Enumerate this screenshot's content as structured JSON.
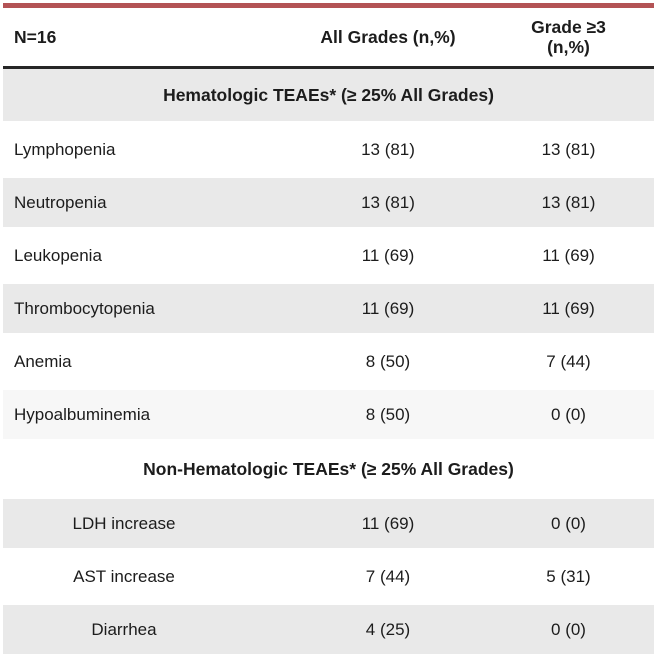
{
  "accent": {
    "top_bar_color": "#b35355",
    "header_rule_color": "#262626",
    "band_color": "#e9e9e9",
    "faint_band_color": "#f7f7f7"
  },
  "header": {
    "col1": "N=16",
    "col2": "All Grades (n,%)",
    "col3_line1": "Grade ≥3",
    "col3_line2": "(n,%)"
  },
  "sections": [
    {
      "title": "Hematologic TEAEs* (≥ 25% All Grades)",
      "title_shaded": true,
      "label_align": "left",
      "rows": [
        {
          "label": "Lymphopenia",
          "all_grades": "13 (81)",
          "grade_ge3": "13 (81)",
          "shade": "none"
        },
        {
          "label": "Neutropenia",
          "all_grades": "13 (81)",
          "grade_ge3": "13 (81)",
          "shade": "gray"
        },
        {
          "label": "Leukopenia",
          "all_grades": "11 (69)",
          "grade_ge3": "11 (69)",
          "shade": "none"
        },
        {
          "label": "Thrombocytopenia",
          "all_grades": "11 (69)",
          "grade_ge3": "11 (69)",
          "shade": "gray"
        },
        {
          "label": "Anemia",
          "all_grades": "8 (50)",
          "grade_ge3": "7 (44)",
          "shade": "none"
        },
        {
          "label": "Hypoalbuminemia",
          "all_grades": "8 (50)",
          "grade_ge3": "0 (0)",
          "shade": "faint"
        }
      ]
    },
    {
      "title": "Non-Hematologic TEAEs* (≥ 25% All Grades)",
      "title_shaded": false,
      "label_align": "center",
      "rows": [
        {
          "label": "LDH increase",
          "all_grades": "11 (69)",
          "grade_ge3": "0 (0)",
          "shade": "gray"
        },
        {
          "label": "AST increase",
          "all_grades": "7 (44)",
          "grade_ge3": "5 (31)",
          "shade": "none"
        },
        {
          "label": "Diarrhea",
          "all_grades": "4 (25)",
          "grade_ge3": "0 (0)",
          "shade": "gray"
        }
      ]
    }
  ]
}
